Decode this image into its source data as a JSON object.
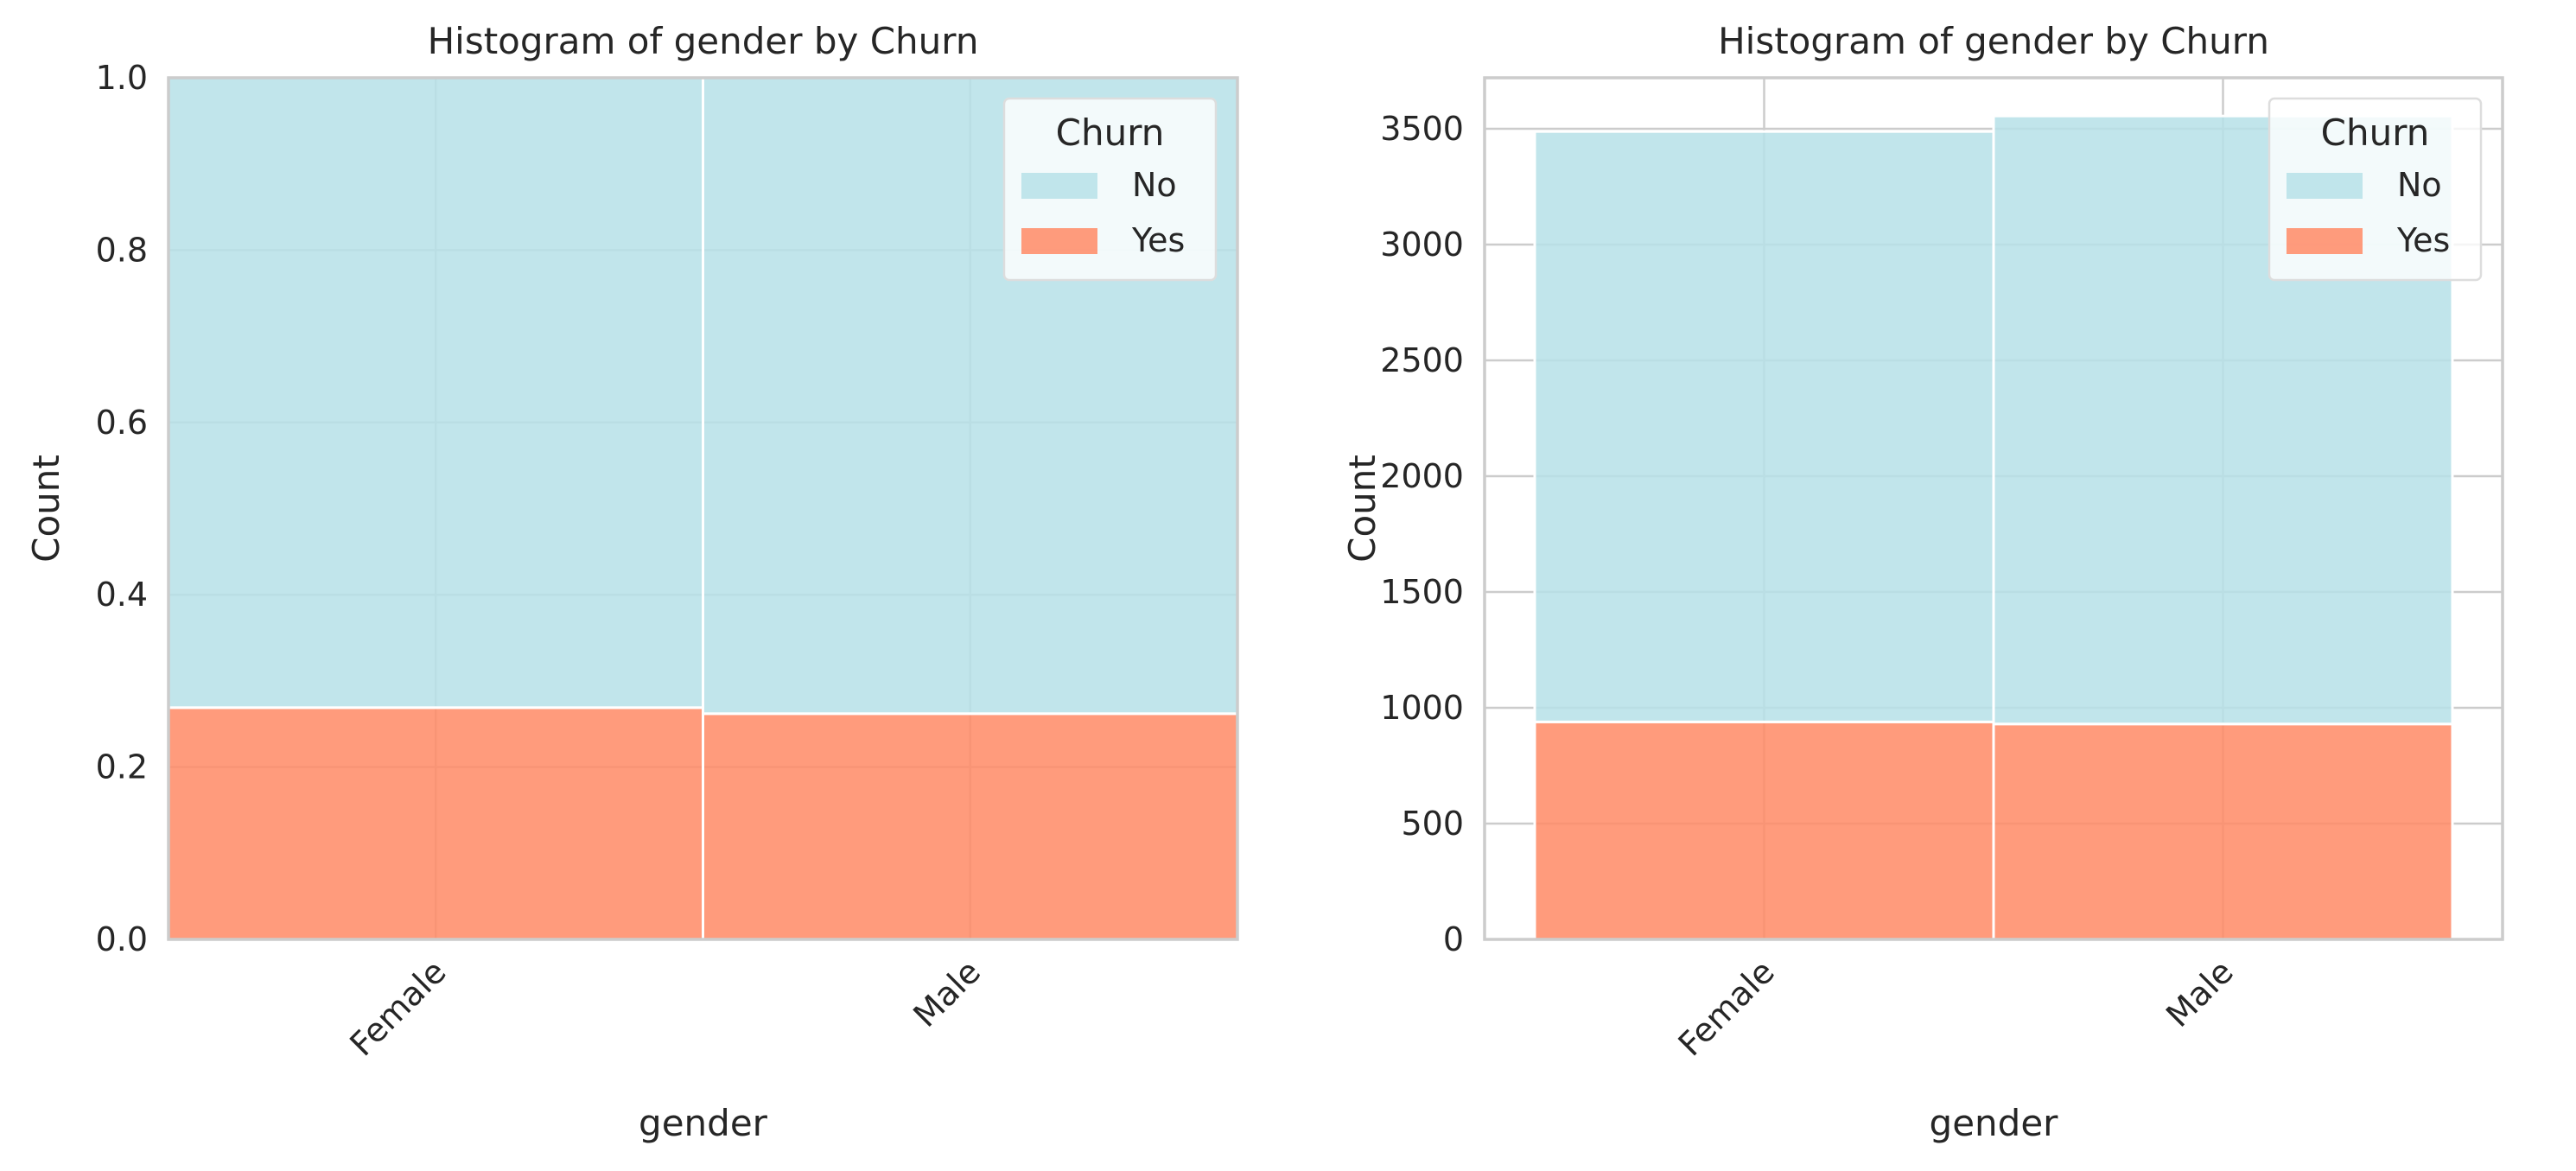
{
  "chart_data": [
    {
      "type": "bar",
      "stacked": true,
      "normalized": true,
      "title": "Histogram of gender by Churn",
      "xlabel": "gender",
      "ylabel": "Count",
      "categories": [
        "Female",
        "Male"
      ],
      "series": [
        {
          "name": "Yes",
          "values": [
            0.269,
            0.262
          ],
          "color": "#FF8A65"
        },
        {
          "name": "No",
          "values": [
            0.731,
            0.738
          ],
          "color": "#B6E1E7"
        }
      ],
      "ylim": [
        0,
        1.0
      ],
      "yticks": [
        "0.0",
        "0.2",
        "0.4",
        "0.6",
        "0.8",
        "1.0"
      ],
      "ytick_values": [
        0,
        0.2,
        0.4,
        0.6,
        0.8,
        1.0
      ],
      "grid": true,
      "legend": {
        "title": "Churn",
        "position": "top-right",
        "entries": [
          "No",
          "Yes"
        ]
      }
    },
    {
      "type": "bar",
      "stacked": true,
      "normalized": false,
      "title": "Histogram of gender by Churn",
      "xlabel": "gender",
      "ylabel": "Count",
      "categories": [
        "Female",
        "Male"
      ],
      "series": [
        {
          "name": "Yes",
          "values": [
            939,
            930
          ],
          "color": "#FF8A65"
        },
        {
          "name": "No",
          "values": [
            2549,
            2625
          ],
          "color": "#B6E1E7"
        }
      ],
      "ylim": [
        0,
        3720
      ],
      "yticks": [
        "0",
        "500",
        "1000",
        "1500",
        "2000",
        "2500",
        "3000",
        "3500"
      ],
      "ytick_values": [
        0,
        500,
        1000,
        1500,
        2000,
        2500,
        3000,
        3500
      ],
      "grid": true,
      "legend": {
        "title": "Churn",
        "position": "top-right",
        "entries": [
          "No",
          "Yes"
        ]
      }
    }
  ]
}
